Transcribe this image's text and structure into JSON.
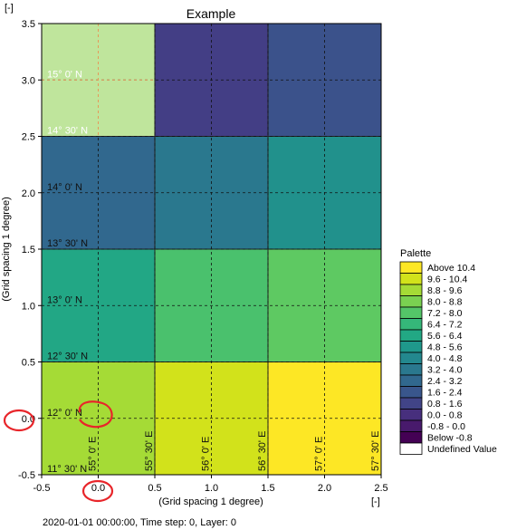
{
  "chart_data": {
    "type": "heatmap",
    "title": "Example",
    "xlabel": "(Grid spacing 1 degree)",
    "ylabel": "(Grid spacing 1 degree)",
    "x_unit_label": "[-]",
    "y_unit_label": "[-]",
    "xlim": [
      -0.5,
      2.5
    ],
    "ylim": [
      -0.5,
      3.5
    ],
    "x_ticks": [
      "-0.5",
      "0.0",
      "0.5",
      "1.0",
      "1.5",
      "2.0",
      "2.5"
    ],
    "y_ticks": [
      "-0.5",
      "0.0",
      "0.5",
      "1.0",
      "1.5",
      "2.0",
      "2.5",
      "3.0",
      "3.5"
    ],
    "cells": [
      {
        "x0": -0.5,
        "x1": 0.5,
        "y0": -0.5,
        "y1": 0.5,
        "color": "#a5db36"
      },
      {
        "x0": 0.5,
        "x1": 1.5,
        "y0": -0.5,
        "y1": 0.5,
        "color": "#d2e21b"
      },
      {
        "x0": 1.5,
        "x1": 2.5,
        "y0": -0.5,
        "y1": 0.5,
        "color": "#fde725"
      },
      {
        "x0": -0.5,
        "x1": 0.5,
        "y0": 0.5,
        "y1": 1.5,
        "color": "#22a785"
      },
      {
        "x0": 0.5,
        "x1": 1.5,
        "y0": 0.5,
        "y1": 1.5,
        "color": "#4ac16d"
      },
      {
        "x0": 1.5,
        "x1": 2.5,
        "y0": 0.5,
        "y1": 1.5,
        "color": "#5ec962"
      },
      {
        "x0": -0.5,
        "x1": 0.5,
        "y0": 1.5,
        "y1": 2.5,
        "color": "#31688e"
      },
      {
        "x0": 0.5,
        "x1": 1.5,
        "y0": 1.5,
        "y1": 2.5,
        "color": "#2a788e"
      },
      {
        "x0": 1.5,
        "x1": 2.5,
        "y0": 1.5,
        "y1": 2.5,
        "color": "#21918c"
      },
      {
        "x0": -0.5,
        "x1": 0.5,
        "y0": 2.5,
        "y1": 3.5,
        "color": "#bfe59c"
      },
      {
        "x0": 0.5,
        "x1": 1.5,
        "y0": 2.5,
        "y1": 3.5,
        "color": "#433e85"
      },
      {
        "x0": 1.5,
        "x1": 2.5,
        "y0": 2.5,
        "y1": 3.5,
        "color": "#3b528b"
      }
    ],
    "cell_outline_color": "#222222",
    "graticule": {
      "lon_lines": [
        0.0,
        0.5,
        1.0,
        1.5,
        2.0,
        2.5
      ],
      "lat_lines": [
        0.0,
        0.5,
        1.0,
        1.5,
        2.0,
        2.5,
        3.0,
        3.5
      ],
      "highlight_color": "#e69a5a",
      "highlight_region": {
        "x0": -0.5,
        "x1": 0.5,
        "y0": 2.5,
        "y1": 3.5
      },
      "lat_labels": [
        {
          "y": 3.0,
          "text": "15° 0' N",
          "light": true
        },
        {
          "y": 2.5,
          "text": "14° 30' N",
          "light": true
        },
        {
          "y": 2.0,
          "text": "14° 0' N",
          "light": false
        },
        {
          "y": 1.5,
          "text": "13° 30' N",
          "light": false
        },
        {
          "y": 1.0,
          "text": "13° 0' N",
          "light": false
        },
        {
          "y": 0.5,
          "text": "12° 30' N",
          "light": false
        },
        {
          "y": 0.0,
          "text": "12° 0' N",
          "light": false
        },
        {
          "y": -0.5,
          "text": "11° 30' N",
          "light": false
        }
      ],
      "lon_labels": [
        {
          "x": 0.0,
          "text": "55° 0' E"
        },
        {
          "x": 0.5,
          "text": "55° 30' E"
        },
        {
          "x": 1.0,
          "text": "56° 0' E"
        },
        {
          "x": 1.5,
          "text": "56° 30' E"
        },
        {
          "x": 2.0,
          "text": "57° 0' E"
        },
        {
          "x": 2.5,
          "text": "57° 30' E"
        }
      ]
    },
    "legend": {
      "title": "Palette",
      "placement": "right",
      "entries": [
        {
          "label": "Above 10.4",
          "color": "#fde725"
        },
        {
          "label": "9.6 - 10.4",
          "color": "#d2e21b"
        },
        {
          "label": "8.8 -  9.6",
          "color": "#a5db36"
        },
        {
          "label": "8.0 -  8.8",
          "color": "#7ad151"
        },
        {
          "label": "7.2 -  8.0",
          "color": "#54c568"
        },
        {
          "label": "6.4 -  7.2",
          "color": "#35b779"
        },
        {
          "label": "5.6 -  6.4",
          "color": "#22a884"
        },
        {
          "label": "4.8 -  5.6",
          "color": "#1f988b"
        },
        {
          "label": "4.0 -  4.8",
          "color": "#23888e"
        },
        {
          "label": "3.2 -  4.0",
          "color": "#2a788e"
        },
        {
          "label": "2.4 -  3.2",
          "color": "#31688e"
        },
        {
          "label": "1.6 -  2.4",
          "color": "#39568c"
        },
        {
          "label": "0.8 -  1.6",
          "color": "#414487"
        },
        {
          "label": "0.0 -  0.8",
          "color": "#472f7d"
        },
        {
          "label": "-0.8 -  0.0",
          "color": "#481a6c"
        },
        {
          "label": "Below  -0.8",
          "color": "#440154"
        },
        {
          "label": "Undefined Value",
          "color": "#ffffff"
        }
      ]
    },
    "annotations": [
      {
        "type": "circle",
        "color": "#e8252a",
        "target": "y-tick 0.0"
      },
      {
        "type": "circle",
        "color": "#e8252a",
        "target": "x-tick 0.0"
      },
      {
        "type": "circle",
        "color": "#e8252a",
        "target": "point 12° 0' N / 55° 0' E"
      }
    ]
  },
  "status": {
    "text": "2020-01-01 00:00:00, Time step: 0, Layer: 0"
  }
}
